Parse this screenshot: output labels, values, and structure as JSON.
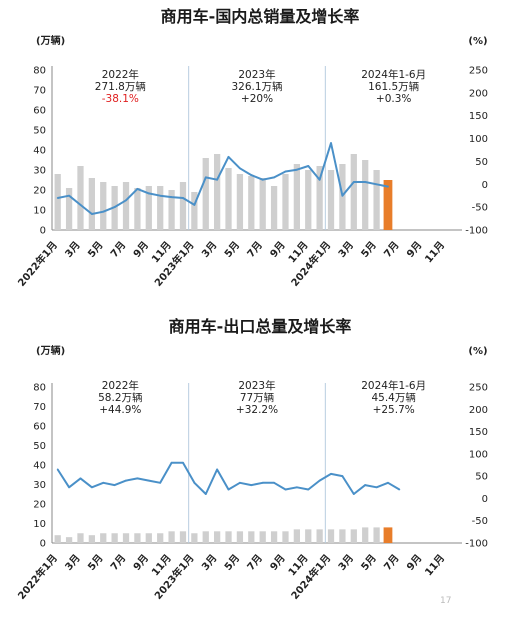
{
  "page_number": "17",
  "chart_data": [
    {
      "type": "bar+line",
      "title": "商用车-国内总销量及增长率",
      "left_unit": "(万辆)",
      "right_unit": "(%)",
      "left_ticks": [
        "0",
        "10",
        "20",
        "30",
        "40",
        "50",
        "60",
        "70",
        "80"
      ],
      "right_ticks": [
        "-100",
        "-50",
        "0",
        "50",
        "100",
        "150",
        "200",
        "250"
      ],
      "ylim_left": [
        0,
        80
      ],
      "ylim_right": [
        -100,
        250
      ],
      "x_tick_labels": [
        "2022年1月",
        "3月",
        "5月",
        "7月",
        "9月",
        "11月",
        "2023年1月",
        "3月",
        "5月",
        "7月",
        "9月",
        "11月",
        "2024年1月",
        "3月",
        "5月",
        "7月",
        "9月",
        "11月"
      ],
      "annotations": [
        {
          "year": "2022年",
          "volume": "271.8万辆",
          "growth": "-38.1%",
          "growth_color": "#e02020"
        },
        {
          "year": "2023年",
          "volume": "326.1万辆",
          "growth": "+20%",
          "growth_color": "#222222"
        },
        {
          "year": "2024年1-6月",
          "volume": "161.5万辆",
          "growth": "+0.3%",
          "growth_color": "#222222"
        }
      ],
      "series": [
        {
          "name": "",
          "kind": "bar",
          "axis": "left",
          "color": "#cfcfcf",
          "values": [
            28,
            21,
            32,
            26,
            24,
            22,
            24,
            21,
            22,
            22,
            20,
            24,
            19,
            36,
            38,
            31,
            28,
            27,
            26,
            22,
            28,
            33,
            30,
            32,
            30,
            33,
            38,
            35,
            30,
            null,
            null,
            null,
            null,
            null,
            null,
            null
          ]
        },
        {
          "name": "",
          "kind": "bar-highlight",
          "axis": "left",
          "color": "#e87d2a",
          "index": 29,
          "value": 25
        },
        {
          "name": "",
          "kind": "line",
          "axis": "right",
          "color": "#4a90c8",
          "values": [
            -30,
            -25,
            -45,
            -65,
            -60,
            -50,
            -35,
            -10,
            -20,
            -25,
            -28,
            -30,
            -45,
            15,
            10,
            60,
            35,
            20,
            10,
            15,
            28,
            32,
            40,
            10,
            90,
            -25,
            5,
            5,
            0,
            -5,
            null,
            null,
            null,
            null,
            null,
            null
          ]
        }
      ]
    },
    {
      "type": "bar+line",
      "title": "商用车-出口总量及增长率",
      "left_unit": "(万辆)",
      "right_unit": "(%)",
      "left_ticks": [
        "0",
        "10",
        "20",
        "30",
        "40",
        "50",
        "60",
        "70",
        "80"
      ],
      "right_ticks": [
        "-100",
        "-50",
        "0",
        "50",
        "100",
        "150",
        "200",
        "250"
      ],
      "ylim_left": [
        0,
        80
      ],
      "ylim_right": [
        -100,
        250
      ],
      "x_tick_labels": [
        "2022年1月",
        "3月",
        "5月",
        "7月",
        "9月",
        "11月",
        "2023年1月",
        "3月",
        "5月",
        "7月",
        "9月",
        "11月",
        "2024年1月",
        "3月",
        "5月",
        "7月",
        "9月",
        "11月"
      ],
      "annotations": [
        {
          "year": "2022年",
          "volume": "58.2万辆",
          "growth": "+44.9%",
          "growth_color": "#222222"
        },
        {
          "year": "2023年",
          "volume": "77万辆",
          "growth": "+32.2%",
          "growth_color": "#222222"
        },
        {
          "year": "2024年1-6月",
          "volume": "45.4万辆",
          "growth": "+25.7%",
          "growth_color": "#222222"
        }
      ],
      "series": [
        {
          "name": "",
          "kind": "bar",
          "axis": "left",
          "color": "#cfcfcf",
          "values": [
            4,
            3,
            5,
            4,
            5,
            5,
            5,
            5,
            5,
            5,
            6,
            6,
            5,
            6,
            6,
            6,
            6,
            6,
            6,
            6,
            6,
            7,
            7,
            7,
            7,
            7,
            7,
            8,
            8,
            null,
            null,
            null,
            null,
            null,
            null,
            null
          ]
        },
        {
          "name": "",
          "kind": "bar-highlight",
          "axis": "left",
          "color": "#e87d2a",
          "index": 29,
          "value": 8
        },
        {
          "name": "",
          "kind": "line",
          "axis": "right",
          "color": "#4a90c8",
          "values": [
            65,
            25,
            45,
            25,
            35,
            30,
            40,
            45,
            40,
            35,
            80,
            80,
            35,
            10,
            65,
            20,
            35,
            30,
            35,
            35,
            20,
            25,
            20,
            40,
            55,
            50,
            10,
            30,
            25,
            35,
            20,
            null,
            null,
            null,
            null,
            null
          ]
        }
      ]
    }
  ]
}
